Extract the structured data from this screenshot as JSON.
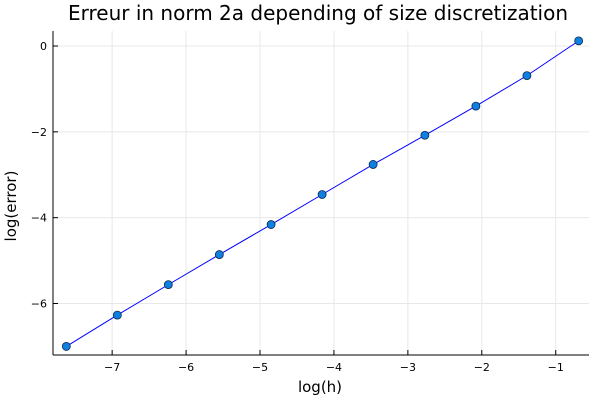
{
  "chart_data": {
    "type": "line",
    "title": "Erreur in norm 2a depending of size discretization",
    "xlabel": "log(h)",
    "ylabel": "log(error)",
    "xlim": [
      -7.8,
      -0.55
    ],
    "ylim": [
      -7.2,
      0.35
    ],
    "x_ticks": [
      -7,
      -6,
      -5,
      -4,
      -3,
      -2,
      -1
    ],
    "x_tick_labels": [
      "−7",
      "−6",
      "−5",
      "−4",
      "−3",
      "−2",
      "−1"
    ],
    "y_ticks": [
      -6,
      -4,
      -2,
      0
    ],
    "y_tick_labels": [
      "−6",
      "−4",
      "−2",
      "0"
    ],
    "grid": true,
    "legend": "none",
    "colors": {
      "line": "#0000ff",
      "marker": "#0f7fe0",
      "marker_edge": "#0a2a55",
      "grid": "#e8e8e8",
      "axis": "#000000"
    },
    "series": [
      {
        "x": [
          -7.62,
          -6.93,
          -6.24,
          -5.55,
          -4.85,
          -4.16,
          -3.47,
          -2.77,
          -2.08,
          -1.39,
          -0.69
        ],
        "y": [
          -7.0,
          -6.27,
          -5.56,
          -4.86,
          -4.16,
          -3.46,
          -2.76,
          -2.08,
          -1.4,
          -0.69,
          0.12
        ]
      }
    ]
  }
}
